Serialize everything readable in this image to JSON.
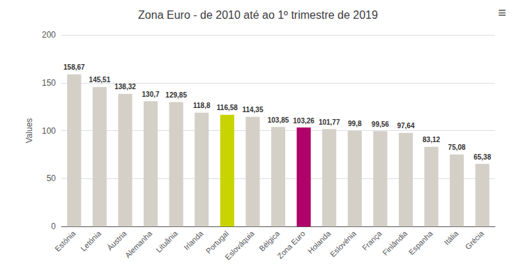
{
  "chart_data": {
    "type": "bar",
    "title": "Zona Euro - de 2010 até ao 1º trimestre de 2019",
    "categories": [
      "Estónia",
      "Letónia",
      "Áustria",
      "Alemanha",
      "Lituânia",
      "Irlanda",
      "Portugal",
      "Eslováquia",
      "Bélgica",
      "Zona Euro",
      "Holanda",
      "Eslovénia",
      "França",
      "Finlândia",
      "Espanha",
      "Itália",
      "Grécia"
    ],
    "values": [
      158.67,
      145.51,
      138.32,
      130.7,
      129.85,
      118.8,
      116.58,
      114.35,
      103.85,
      103.26,
      101.77,
      99.8,
      99.56,
      97.64,
      83.12,
      75.08,
      65.38
    ],
    "value_labels": [
      "158,67",
      "145,51",
      "138,32",
      "130,7",
      "129,85",
      "118,8",
      "116,58",
      "114,35",
      "103,85",
      "103,26",
      "101,77",
      "99,8",
      "99,56",
      "97,64",
      "83,12",
      "75,08",
      "65,38"
    ],
    "colors": [
      "#d4d0c8",
      "#d4d0c8",
      "#d4d0c8",
      "#d4d0c8",
      "#d4d0c8",
      "#d4d0c8",
      "#c8d400",
      "#d4d0c8",
      "#d4d0c8",
      "#b0006a",
      "#d4d0c8",
      "#d4d0c8",
      "#d4d0c8",
      "#d4d0c8",
      "#d4d0c8",
      "#d4d0c8",
      "#d4d0c8"
    ],
    "ylabel": "Values",
    "ylim": [
      0,
      200
    ],
    "yticks": [
      0,
      50,
      100,
      150,
      200
    ],
    "grid": true,
    "data_labels": true,
    "annotations": [
      "≡"
    ]
  }
}
